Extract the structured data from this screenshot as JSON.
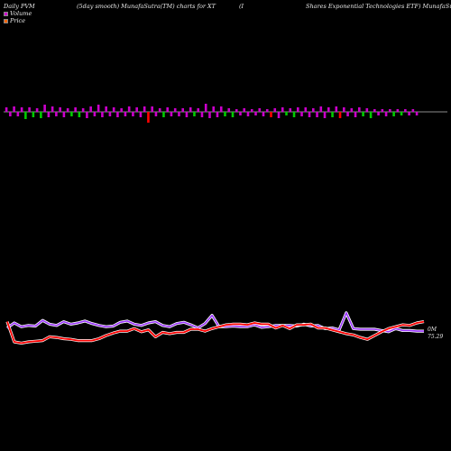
{
  "header": {
    "left": "Daily PVM",
    "middle": "(5day smooth) MunafaSutra(TM) charts for XT",
    "paren": "(I",
    "right": "Shares Exponential Technologies ETF) MunafaSutra.com"
  },
  "legend": [
    {
      "label": "Volume",
      "color": "#cc00cc"
    },
    {
      "label": "Price",
      "color": "#ff6600"
    }
  ],
  "chart_data": {
    "type": "line",
    "volume_label": "0M",
    "last_price_label": "75.29",
    "colors": {
      "vol_up": "#cc00cc",
      "vol_down": "#00cc00",
      "vol_spike": "#ff0000",
      "volume_line": "#9933ff",
      "price_line": "#ff0000",
      "baseline": "#bbbbbb"
    },
    "bars": [
      {
        "v": 5,
        "c": "up"
      },
      {
        "v": -5,
        "c": "up"
      },
      {
        "v": 6,
        "c": "up"
      },
      {
        "v": -5,
        "c": "up"
      },
      {
        "v": 5,
        "c": "up"
      },
      {
        "v": -8,
        "c": "down"
      },
      {
        "v": 5,
        "c": "up"
      },
      {
        "v": -6,
        "c": "down"
      },
      {
        "v": 4,
        "c": "up"
      },
      {
        "v": -7,
        "c": "down"
      },
      {
        "v": 8,
        "c": "up"
      },
      {
        "v": -6,
        "c": "up"
      },
      {
        "v": 6,
        "c": "up"
      },
      {
        "v": -5,
        "c": "up"
      },
      {
        "v": 5,
        "c": "up"
      },
      {
        "v": -6,
        "c": "up"
      },
      {
        "v": 4,
        "c": "up"
      },
      {
        "v": -5,
        "c": "down"
      },
      {
        "v": 5,
        "c": "up"
      },
      {
        "v": -6,
        "c": "down"
      },
      {
        "v": 4,
        "c": "up"
      },
      {
        "v": -7,
        "c": "up"
      },
      {
        "v": 6,
        "c": "up"
      },
      {
        "v": -5,
        "c": "up"
      },
      {
        "v": 8,
        "c": "up"
      },
      {
        "v": -6,
        "c": "up"
      },
      {
        "v": 6,
        "c": "up"
      },
      {
        "v": -5,
        "c": "up"
      },
      {
        "v": 5,
        "c": "up"
      },
      {
        "v": -6,
        "c": "up"
      },
      {
        "v": 4,
        "c": "up"
      },
      {
        "v": -5,
        "c": "up"
      },
      {
        "v": 6,
        "c": "up"
      },
      {
        "v": -5,
        "c": "up"
      },
      {
        "v": 5,
        "c": "up"
      },
      {
        "v": -6,
        "c": "up"
      },
      {
        "v": 6,
        "c": "up"
      },
      {
        "v": -12,
        "c": "spike"
      },
      {
        "v": 6,
        "c": "up"
      },
      {
        "v": -5,
        "c": "up"
      },
      {
        "v": 4,
        "c": "up"
      },
      {
        "v": -6,
        "c": "down"
      },
      {
        "v": 5,
        "c": "up"
      },
      {
        "v": -5,
        "c": "up"
      },
      {
        "v": 4,
        "c": "up"
      },
      {
        "v": -5,
        "c": "up"
      },
      {
        "v": 4,
        "c": "up"
      },
      {
        "v": -6,
        "c": "up"
      },
      {
        "v": 5,
        "c": "up"
      },
      {
        "v": -5,
        "c": "down"
      },
      {
        "v": 4,
        "c": "up"
      },
      {
        "v": -6,
        "c": "up"
      },
      {
        "v": 9,
        "c": "up"
      },
      {
        "v": -7,
        "c": "up"
      },
      {
        "v": 6,
        "c": "up"
      },
      {
        "v": -6,
        "c": "up"
      },
      {
        "v": 6,
        "c": "up"
      },
      {
        "v": -5,
        "c": "down"
      },
      {
        "v": 4,
        "c": "up"
      },
      {
        "v": -6,
        "c": "down"
      },
      {
        "v": 3,
        "c": "up"
      },
      {
        "v": -4,
        "c": "up"
      },
      {
        "v": 4,
        "c": "up"
      },
      {
        "v": -5,
        "c": "up"
      },
      {
        "v": 3,
        "c": "up"
      },
      {
        "v": -4,
        "c": "up"
      },
      {
        "v": 4,
        "c": "up"
      },
      {
        "v": -5,
        "c": "up"
      },
      {
        "v": 3,
        "c": "up"
      },
      {
        "v": -6,
        "c": "spike"
      },
      {
        "v": 4,
        "c": "up"
      },
      {
        "v": -7,
        "c": "up"
      },
      {
        "v": 5,
        "c": "up"
      },
      {
        "v": -4,
        "c": "down"
      },
      {
        "v": 4,
        "c": "up"
      },
      {
        "v": -6,
        "c": "down"
      },
      {
        "v": 5,
        "c": "up"
      },
      {
        "v": -5,
        "c": "up"
      },
      {
        "v": 5,
        "c": "up"
      },
      {
        "v": -6,
        "c": "up"
      },
      {
        "v": 4,
        "c": "up"
      },
      {
        "v": -6,
        "c": "up"
      },
      {
        "v": 6,
        "c": "up"
      },
      {
        "v": -7,
        "c": "up"
      },
      {
        "v": 5,
        "c": "up"
      },
      {
        "v": -6,
        "c": "down"
      },
      {
        "v": 6,
        "c": "up"
      },
      {
        "v": -7,
        "c": "spike"
      },
      {
        "v": 5,
        "c": "up"
      },
      {
        "v": -5,
        "c": "up"
      },
      {
        "v": 4,
        "c": "up"
      },
      {
        "v": -6,
        "c": "up"
      },
      {
        "v": 5,
        "c": "up"
      },
      {
        "v": -5,
        "c": "down"
      },
      {
        "v": 4,
        "c": "up"
      },
      {
        "v": -7,
        "c": "down"
      },
      {
        "v": 3,
        "c": "up"
      },
      {
        "v": -4,
        "c": "up"
      },
      {
        "v": 3,
        "c": "up"
      },
      {
        "v": -5,
        "c": "up"
      },
      {
        "v": 3,
        "c": "up"
      },
      {
        "v": -5,
        "c": "down"
      },
      {
        "v": 3,
        "c": "up"
      },
      {
        "v": -4,
        "c": "down"
      },
      {
        "v": 3,
        "c": "up"
      },
      {
        "v": -4,
        "c": "up"
      },
      {
        "v": 3,
        "c": "up"
      },
      {
        "v": -4,
        "c": "up"
      }
    ],
    "volume_line": [
      62,
      70,
      64,
      66,
      65,
      74,
      68,
      66,
      72,
      68,
      70,
      73,
      69,
      66,
      64,
      65,
      71,
      73,
      68,
      66,
      70,
      72,
      66,
      64,
      69,
      71,
      67,
      62,
      69,
      82,
      64,
      64,
      65,
      64,
      64,
      67,
      63,
      64,
      66,
      66,
      66,
      65,
      68,
      65,
      66,
      61,
      62,
      59,
      86,
      61,
      60,
      60,
      60,
      58,
      56,
      61,
      58,
      58,
      57,
      57
    ],
    "price_line": [
      72,
      40,
      38,
      40,
      41,
      42,
      48,
      47,
      45,
      44,
      42,
      42,
      42,
      45,
      50,
      54,
      57,
      57,
      61,
      56,
      59,
      48,
      55,
      53,
      55,
      55,
      60,
      60,
      57,
      61,
      64,
      67,
      68,
      68,
      67,
      70,
      68,
      68,
      62,
      66,
      61,
      67,
      67,
      68,
      62,
      62,
      59,
      56,
      53,
      51,
      47,
      44,
      50,
      56,
      61,
      64,
      67,
      66,
      70,
      72
    ]
  }
}
